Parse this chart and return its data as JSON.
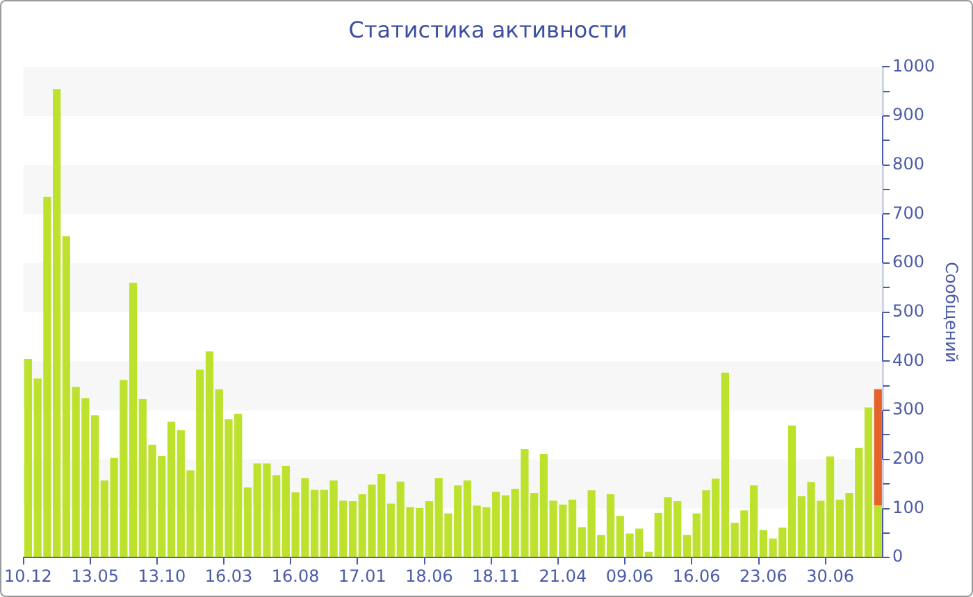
{
  "chart_data": {
    "type": "bar",
    "title": "Статистика активности",
    "ylabel": "Сообщений",
    "categories": [
      "10.12",
      null,
      null,
      null,
      null,
      null,
      null,
      "13.05",
      null,
      null,
      null,
      null,
      null,
      null,
      "13.10",
      null,
      null,
      null,
      null,
      null,
      null,
      "16.03",
      null,
      null,
      null,
      null,
      null,
      null,
      "16.08",
      null,
      null,
      null,
      null,
      null,
      null,
      "17.01",
      null,
      null,
      null,
      null,
      null,
      null,
      "18.06",
      null,
      null,
      null,
      null,
      null,
      null,
      "18.11",
      null,
      null,
      null,
      null,
      null,
      null,
      "21.04",
      null,
      null,
      null,
      null,
      null,
      null,
      "09.06",
      null,
      null,
      null,
      null,
      null,
      null,
      "16.06",
      null,
      null,
      null,
      null,
      null,
      null,
      "23.06",
      null,
      null,
      null,
      null,
      null,
      null,
      "30.06",
      null,
      null,
      null,
      null,
      null
    ],
    "series": [
      {
        "color": "#bde22e",
        "values": [
          405,
          365,
          735,
          955,
          655,
          348,
          325,
          290,
          157,
          203,
          362,
          560,
          323,
          230,
          207,
          277,
          260,
          178,
          383,
          420,
          343,
          282,
          293,
          143,
          192,
          192,
          168,
          187,
          133,
          162,
          138,
          138,
          157,
          116,
          115,
          129,
          149,
          170,
          110,
          155,
          103,
          101,
          115,
          162,
          90,
          147,
          157,
          106,
          103,
          134,
          127,
          140,
          221,
          132,
          211,
          116,
          108,
          118,
          62,
          137,
          46,
          129,
          85,
          49,
          59,
          12,
          91,
          123,
          115,
          46,
          90,
          137,
          161,
          377,
          71,
          96,
          147,
          56,
          39,
          61,
          269,
          125,
          154,
          116,
          206,
          118,
          132,
          224,
          306,
          106
        ]
      },
      {
        "color": "#e5622a",
        "values": [
          null,
          null,
          null,
          null,
          null,
          null,
          null,
          null,
          null,
          null,
          null,
          null,
          null,
          null,
          null,
          null,
          null,
          null,
          null,
          null,
          null,
          null,
          null,
          null,
          null,
          null,
          null,
          null,
          null,
          null,
          null,
          null,
          null,
          null,
          null,
          null,
          null,
          null,
          null,
          null,
          null,
          null,
          null,
          null,
          null,
          null,
          null,
          null,
          null,
          null,
          null,
          null,
          null,
          null,
          null,
          null,
          null,
          null,
          null,
          null,
          null,
          null,
          null,
          null,
          null,
          null,
          null,
          null,
          null,
          null,
          null,
          null,
          null,
          null,
          null,
          null,
          null,
          null,
          null,
          null,
          null,
          null,
          null,
          null,
          null,
          null,
          null,
          null,
          null,
          237
        ]
      }
    ],
    "stacked": true,
    "ylim": [
      0,
      1000
    ],
    "yticks": [
      0,
      {
        "value": 50,
        "label": null
      },
      100,
      {
        "value": 150,
        "label": null
      },
      200,
      {
        "value": 250,
        "label": null
      },
      300,
      {
        "value": 350,
        "label": null
      },
      400,
      {
        "value": 450,
        "label": null
      },
      500,
      {
        "value": 550,
        "label": null
      },
      600,
      {
        "value": 650,
        "label": null
      },
      700,
      {
        "value": 750,
        "label": null
      },
      800,
      {
        "value": 850,
        "label": null
      },
      900,
      {
        "value": 950,
        "label": null
      },
      1000
    ],
    "bands": [
      {
        "axis": "y",
        "from": 100,
        "to": 200,
        "color": "#f7f7f7"
      },
      {
        "axis": "y",
        "from": 300,
        "to": 400,
        "color": "#f7f7f7"
      },
      {
        "axis": "y",
        "from": 500,
        "to": 600,
        "color": "#f7f7f7"
      },
      {
        "axis": "y",
        "from": 700,
        "to": 800,
        "color": "#f7f7f7"
      },
      {
        "axis": "y",
        "from": 900,
        "to": 1000,
        "color": "#f7f7f7"
      }
    ],
    "grid": false,
    "legend": false
  }
}
